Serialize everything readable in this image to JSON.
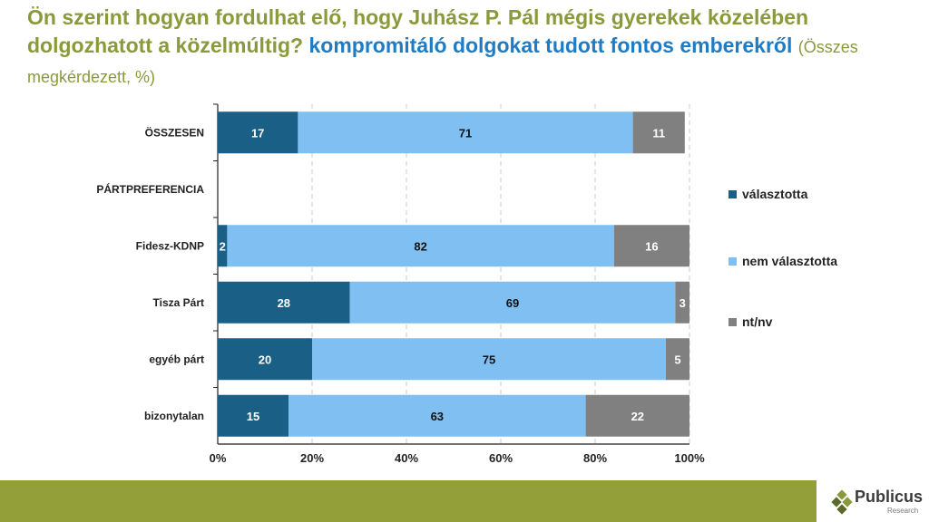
{
  "title": {
    "part1": "Ön szerint hogyan fordulhat elő, hogy Juhász P. Pál mégis gyerekek közelében dolgozhatott a közelmúltig?",
    "part2": "kompromitáló dolgokat tudott fontos emberekről",
    "part3": "(Összes megkérdezett, %)"
  },
  "logo": {
    "name": "Publicus",
    "sub": "Research"
  },
  "colors": {
    "title_green": "#8a9a3b",
    "title_blue": "#1f7cc4",
    "bar_bottom": "#93a03a"
  },
  "chart_data": {
    "type": "stacked-bar-horizontal-100",
    "categories": [
      "ÖSSZESEN",
      "PÁRTPREFERENCIA",
      "Fidesz-KDNP",
      "Tisza Párt",
      "egyéb párt",
      "bizonytalan"
    ],
    "series": [
      {
        "name": "választotta",
        "color": "#1a5f86",
        "values": [
          17,
          null,
          2,
          28,
          20,
          15
        ]
      },
      {
        "name": "nem választotta",
        "color": "#7fbff2",
        "values": [
          71,
          null,
          82,
          69,
          75,
          63
        ]
      },
      {
        "name": "nt/nv",
        "color": "#808080",
        "values": [
          11,
          null,
          16,
          3,
          5,
          22
        ]
      }
    ],
    "xlim": [
      0,
      100
    ],
    "xticks": [
      "0%",
      "20%",
      "40%",
      "60%",
      "80%",
      "100%"
    ],
    "gridlines": "dashed vertical",
    "legend": "right"
  }
}
